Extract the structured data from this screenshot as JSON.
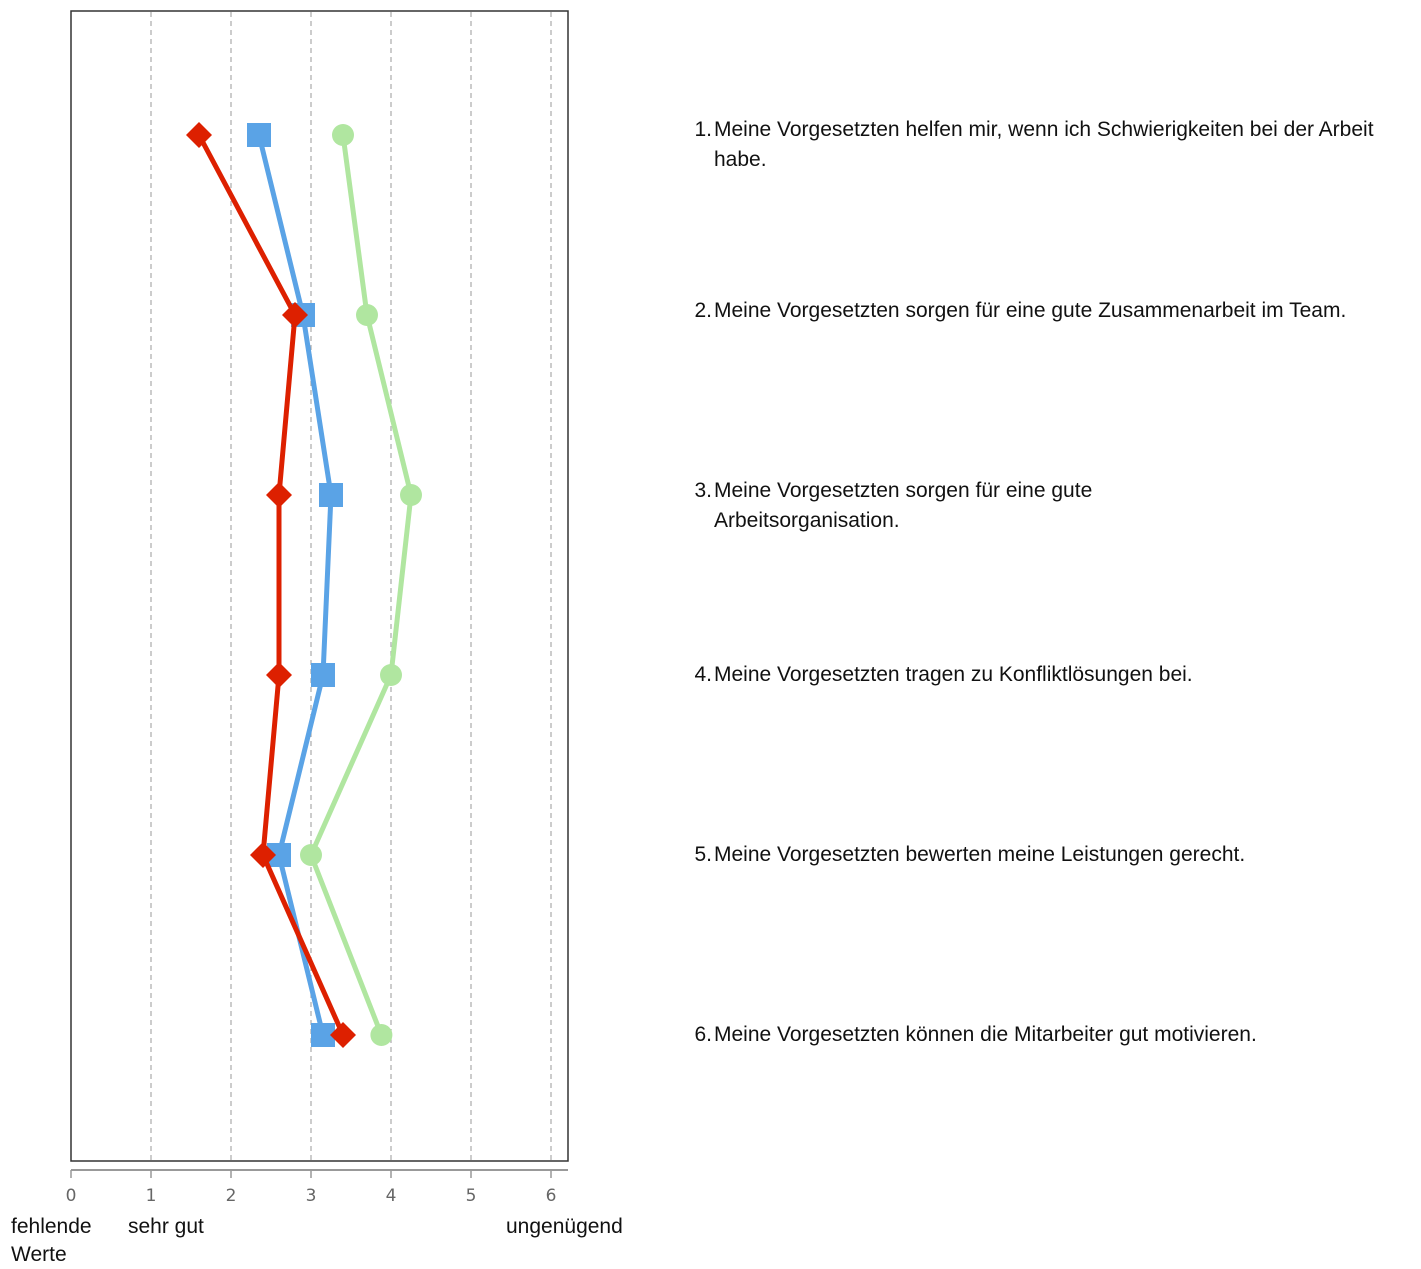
{
  "chart_data": {
    "type": "line",
    "orientation": "horizontal",
    "xlim": [
      0,
      6
    ],
    "x_ticks": [
      "0",
      "1",
      "2",
      "3",
      "4",
      "5",
      "6"
    ],
    "grid": true,
    "categories": [
      "Meine Vorgesetzten helfen mir, wenn ich Schwierigkeiten bei der Arbeit habe.",
      "Meine Vorgesetzten sorgen für eine gute Zusammenarbeit im Team.",
      "Meine Vorgesetzten sorgen für eine gute Arbeitsorganisation.",
      "Meine Vorgesetzten tragen zu Konfliktlösungen bei.",
      "Meine Vorgesetzten bewerten meine Leistungen gerecht.",
      "Meine Vorgesetzten können die Mitarbeiter gut motivieren."
    ],
    "category_numbers": [
      "1.",
      "2.",
      "3.",
      "4.",
      "5.",
      "6."
    ],
    "scale_labels": {
      "zero": "fehlende Werte",
      "low": "sehr gut",
      "high": "ungenügend"
    },
    "series": [
      {
        "marker": "circle",
        "color": "#b0e6a0",
        "values": [
          3.4,
          3.7,
          4.25,
          4.0,
          3.0,
          3.88
        ]
      },
      {
        "marker": "square",
        "color": "#5aa3e6",
        "values": [
          2.35,
          2.9,
          3.25,
          3.15,
          2.6,
          3.15
        ]
      },
      {
        "marker": "diamond",
        "color": "#dd2000",
        "values": [
          1.6,
          2.8,
          2.6,
          2.6,
          2.4,
          3.4
        ]
      }
    ]
  }
}
